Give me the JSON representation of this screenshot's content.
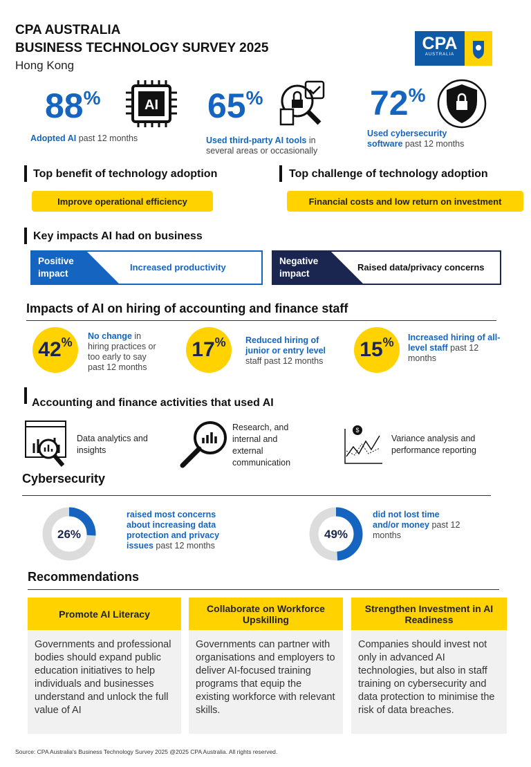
{
  "header": {
    "title_line1": "CPA AUSTRALIA",
    "title_line2": "BUSINESS TECHNOLOGY SURVEY 2025",
    "region": "Hong Kong",
    "logo": "CPA",
    "logo_sub": "AUSTRALIA"
  },
  "stats": [
    {
      "number": "88",
      "unit": "%",
      "bold": "Adopted AI",
      "text": "past 12 months"
    },
    {
      "number": "65",
      "unit": "%",
      "bold": "Used third-party AI tools",
      "text": "in several areas or occasionally"
    },
    {
      "number": "72",
      "unit": "%",
      "bold": "Used cybersecurity software",
      "text": "past 12 months"
    }
  ],
  "benefit": {
    "heading": "Top benefit of technology adoption",
    "item": "Improve operational efficiency"
  },
  "challenge": {
    "heading": "Top challenge of technology adoption",
    "item": "Financial costs and low return on investment"
  },
  "impacts": {
    "heading": "Key impacts AI had on business",
    "positive": {
      "label": "Positive impact",
      "text": "Increased productivity"
    },
    "negative": {
      "label": "Negative impact",
      "text": "Raised data/privacy concerns"
    }
  },
  "hiring": {
    "title": "Impacts of AI on hiring of accounting and finance staff",
    "items": [
      {
        "number": "42",
        "unit": "%",
        "bold": "No change",
        "text": "in hiring practices or too early to say past 12 months"
      },
      {
        "number": "17",
        "unit": "%",
        "bold": "Reduced hiring of junior or entry level",
        "text": "staff past 12 months"
      },
      {
        "number": "15",
        "unit": "%",
        "bold": "Increased hiring of all-level staff",
        "text": "past 12 months"
      }
    ]
  },
  "activities": {
    "heading": "Accounting and finance activities that used AI",
    "items": [
      "Data analytics and insights",
      "Research, and internal and external communication",
      "Variance analysis and performance reporting"
    ]
  },
  "cybersecurity": {
    "title": "Cybersecurity",
    "items": [
      {
        "percent": 26,
        "label": "26%",
        "bold": "raised most concerns about increasing data protection and privacy issues",
        "text": "past 12 months"
      },
      {
        "percent": 49,
        "label": "49%",
        "bold": "did not lost time and/or money",
        "text": "past 12 months"
      }
    ]
  },
  "recommendations": {
    "title": "Recommendations",
    "columns": [
      {
        "title": "Promote AI Literacy",
        "body": "Governments and professional bodies should expand public education initiatives to help individuals and businesses understand and unlock the full value of AI"
      },
      {
        "title": "Collaborate on Workforce Upskilling",
        "body": "Governments can partner with organisations and employers to deliver AI-focused training programs that equip the existing workforce with relevant skills."
      },
      {
        "title": "Strengthen Investment in AI Readiness",
        "body": "Companies should invest not only in advanced AI technologies, but also in staff training on cybersecurity and data protection to minimise the risk of data breaches."
      }
    ]
  },
  "source": "Source: CPA Australia's Business Technology Survey 2025 @2025 CPA Australia. All rights reserved."
}
